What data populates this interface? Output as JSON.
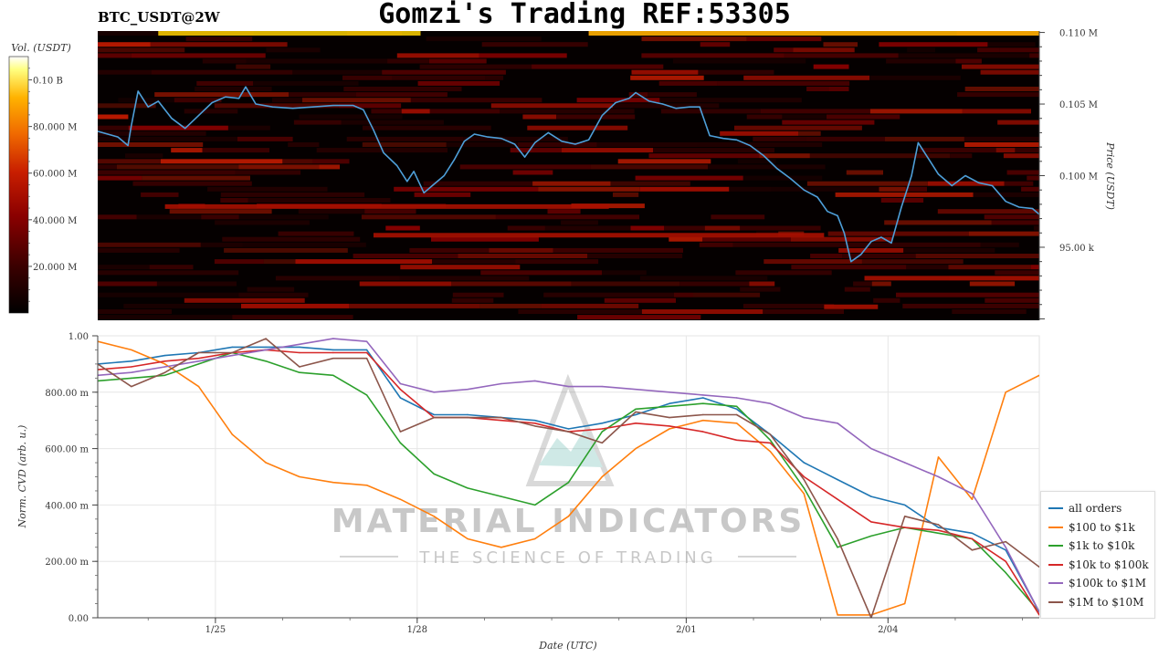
{
  "header": {
    "title": "Gomzi's Trading REF:53305",
    "symbol": "BTC_USDT@2W"
  },
  "colors": {
    "heatmap_bg": "#050000",
    "price_line": "#4e9fd9",
    "colorbar_stops": [
      "#000000",
      "#3a0000",
      "#8b0000",
      "#c81e00",
      "#f06a00",
      "#ffb200",
      "#ffff80",
      "#ffffff"
    ]
  },
  "watermark": {
    "brand": "MATERIAL INDICATORS",
    "tagline": "THE SCIENCE OF TRADING"
  },
  "chart_data": [
    {
      "type": "heatmap",
      "panel": "orderbook",
      "colorbar_label": "Vol. (USDT)",
      "colorbar_ticks": [
        "0.10 B",
        "80.000 M",
        "60.000 M",
        "40.000 M",
        "20.000 M"
      ],
      "colorbar_tick_values": [
        100000000,
        80000000,
        60000000,
        40000000,
        20000000
      ],
      "colorbar_range": [
        0,
        110000000
      ],
      "ylabel": "Price (USDT)",
      "y_ticks": [
        "0.110 M",
        "0.105 M",
        "0.100 M",
        "95.00 k"
      ],
      "y_tick_values": [
        110000,
        105000,
        100000,
        95000
      ],
      "ylim": [
        89900,
        110100
      ],
      "x_range_days": [
        0,
        14
      ],
      "price_series": [
        {
          "x": 0.0,
          "y": 103100
        },
        {
          "x": 0.3,
          "y": 102700
        },
        {
          "x": 0.45,
          "y": 102100
        },
        {
          "x": 0.5,
          "y": 103500
        },
        {
          "x": 0.6,
          "y": 105900
        },
        {
          "x": 0.75,
          "y": 104800
        },
        {
          "x": 0.9,
          "y": 105200
        },
        {
          "x": 1.1,
          "y": 104000
        },
        {
          "x": 1.3,
          "y": 103300
        },
        {
          "x": 1.5,
          "y": 104200
        },
        {
          "x": 1.7,
          "y": 105100
        },
        {
          "x": 1.9,
          "y": 105500
        },
        {
          "x": 2.1,
          "y": 105400
        },
        {
          "x": 2.2,
          "y": 106200
        },
        {
          "x": 2.35,
          "y": 105000
        },
        {
          "x": 2.6,
          "y": 104800
        },
        {
          "x": 2.9,
          "y": 104700
        },
        {
          "x": 3.2,
          "y": 104800
        },
        {
          "x": 3.5,
          "y": 104900
        },
        {
          "x": 3.8,
          "y": 104900
        },
        {
          "x": 3.95,
          "y": 104600
        },
        {
          "x": 4.1,
          "y": 103200
        },
        {
          "x": 4.25,
          "y": 101600
        },
        {
          "x": 4.45,
          "y": 100700
        },
        {
          "x": 4.6,
          "y": 99600
        },
        {
          "x": 4.7,
          "y": 100300
        },
        {
          "x": 4.85,
          "y": 98800
        },
        {
          "x": 5.0,
          "y": 99400
        },
        {
          "x": 5.15,
          "y": 100000
        },
        {
          "x": 5.3,
          "y": 101100
        },
        {
          "x": 5.45,
          "y": 102400
        },
        {
          "x": 5.6,
          "y": 102900
        },
        {
          "x": 5.8,
          "y": 102700
        },
        {
          "x": 6.0,
          "y": 102600
        },
        {
          "x": 6.2,
          "y": 102200
        },
        {
          "x": 6.35,
          "y": 101300
        },
        {
          "x": 6.5,
          "y": 102300
        },
        {
          "x": 6.7,
          "y": 103000
        },
        {
          "x": 6.9,
          "y": 102400
        },
        {
          "x": 7.1,
          "y": 102200
        },
        {
          "x": 7.3,
          "y": 102500
        },
        {
          "x": 7.5,
          "y": 104200
        },
        {
          "x": 7.7,
          "y": 105100
        },
        {
          "x": 7.9,
          "y": 105400
        },
        {
          "x": 8.0,
          "y": 105800
        },
        {
          "x": 8.2,
          "y": 105200
        },
        {
          "x": 8.4,
          "y": 105000
        },
        {
          "x": 8.6,
          "y": 104700
        },
        {
          "x": 8.8,
          "y": 104800
        },
        {
          "x": 8.95,
          "y": 104800
        },
        {
          "x": 9.1,
          "y": 102800
        },
        {
          "x": 9.3,
          "y": 102600
        },
        {
          "x": 9.5,
          "y": 102500
        },
        {
          "x": 9.7,
          "y": 102100
        },
        {
          "x": 9.9,
          "y": 101400
        },
        {
          "x": 10.1,
          "y": 100500
        },
        {
          "x": 10.3,
          "y": 99800
        },
        {
          "x": 10.5,
          "y": 99000
        },
        {
          "x": 10.7,
          "y": 98500
        },
        {
          "x": 10.85,
          "y": 97500
        },
        {
          "x": 11.0,
          "y": 97200
        },
        {
          "x": 11.1,
          "y": 96000
        },
        {
          "x": 11.2,
          "y": 94000
        },
        {
          "x": 11.35,
          "y": 94500
        },
        {
          "x": 11.5,
          "y": 95400
        },
        {
          "x": 11.65,
          "y": 95700
        },
        {
          "x": 11.8,
          "y": 95300
        },
        {
          "x": 11.95,
          "y": 97800
        },
        {
          "x": 12.1,
          "y": 100000
        },
        {
          "x": 12.2,
          "y": 102300
        },
        {
          "x": 12.35,
          "y": 101200
        },
        {
          "x": 12.5,
          "y": 100100
        },
        {
          "x": 12.7,
          "y": 99300
        },
        {
          "x": 12.9,
          "y": 100000
        },
        {
          "x": 13.1,
          "y": 99500
        },
        {
          "x": 13.3,
          "y": 99300
        },
        {
          "x": 13.5,
          "y": 98200
        },
        {
          "x": 13.7,
          "y": 97800
        },
        {
          "x": 13.9,
          "y": 97700
        },
        {
          "x": 14.0,
          "y": 97300
        }
      ]
    },
    {
      "type": "line",
      "panel": "cvd",
      "xlabel": "Date (UTC)",
      "ylabel": "Norm. CVD (arb. u.)",
      "x_ticks": [
        "1/25",
        "1/28",
        "2/01",
        "2/04"
      ],
      "x_tick_values": [
        1.75,
        4.75,
        8.75,
        11.75
      ],
      "x_range_days": [
        0,
        14
      ],
      "y_ticks": [
        "1.00",
        "800.00 m",
        "600.00 m",
        "400.00 m",
        "200.00 m",
        "0.00"
      ],
      "y_tick_values": [
        1.0,
        0.8,
        0.6,
        0.4,
        0.2,
        0.0
      ],
      "ylim": [
        0,
        1
      ],
      "grid": true,
      "legend_position": "right",
      "x": [
        0,
        0.5,
        1,
        1.5,
        2,
        2.5,
        3,
        3.5,
        4,
        4.5,
        5,
        5.5,
        6,
        6.5,
        7,
        7.5,
        8,
        8.5,
        9,
        9.5,
        10,
        10.5,
        11,
        11.5,
        12,
        12.5,
        13,
        13.5,
        14
      ],
      "series": [
        {
          "name": "all orders",
          "color": "#1f77b4",
          "values": [
            0.9,
            0.91,
            0.93,
            0.94,
            0.96,
            0.96,
            0.96,
            0.95,
            0.95,
            0.78,
            0.72,
            0.72,
            0.71,
            0.7,
            0.67,
            0.69,
            0.72,
            0.76,
            0.78,
            0.74,
            0.65,
            0.55,
            0.49,
            0.43,
            0.4,
            0.32,
            0.3,
            0.24,
            0.02
          ]
        },
        {
          "name": "$100 to $1k",
          "color": "#ff7f0e",
          "values": [
            0.98,
            0.95,
            0.9,
            0.82,
            0.65,
            0.55,
            0.5,
            0.48,
            0.47,
            0.42,
            0.36,
            0.28,
            0.25,
            0.28,
            0.36,
            0.5,
            0.6,
            0.67,
            0.7,
            0.69,
            0.59,
            0.44,
            0.01,
            0.01,
            0.05,
            0.57,
            0.42,
            0.8,
            0.86
          ]
        },
        {
          "name": "$1k to $10k",
          "color": "#2ca02c",
          "values": [
            0.84,
            0.85,
            0.86,
            0.9,
            0.94,
            0.91,
            0.87,
            0.86,
            0.79,
            0.62,
            0.51,
            0.46,
            0.43,
            0.4,
            0.48,
            0.66,
            0.74,
            0.75,
            0.76,
            0.75,
            0.63,
            0.46,
            0.25,
            0.29,
            0.32,
            0.3,
            0.28,
            0.16,
            0.02
          ]
        },
        {
          "name": "$10k to $100k",
          "color": "#d62728",
          "values": [
            0.88,
            0.89,
            0.91,
            0.92,
            0.94,
            0.95,
            0.94,
            0.94,
            0.94,
            0.81,
            0.71,
            0.71,
            0.7,
            0.69,
            0.66,
            0.67,
            0.69,
            0.68,
            0.66,
            0.63,
            0.62,
            0.5,
            0.42,
            0.34,
            0.32,
            0.31,
            0.28,
            0.2,
            0.01
          ]
        },
        {
          "name": "$100k to $1M",
          "color": "#9467bd",
          "values": [
            0.86,
            0.87,
            0.89,
            0.91,
            0.93,
            0.95,
            0.97,
            0.99,
            0.98,
            0.83,
            0.8,
            0.81,
            0.83,
            0.84,
            0.82,
            0.82,
            0.81,
            0.8,
            0.79,
            0.78,
            0.76,
            0.71,
            0.69,
            0.6,
            0.55,
            0.5,
            0.44,
            0.25,
            0.02
          ]
        },
        {
          "name": "$1M to $10M",
          "color": "#8c564b",
          "values": [
            0.9,
            0.82,
            0.87,
            0.94,
            0.94,
            0.99,
            0.89,
            0.92,
            0.92,
            0.66,
            0.71,
            0.71,
            0.71,
            0.68,
            0.66,
            0.62,
            0.73,
            0.71,
            0.72,
            0.72,
            0.65,
            0.49,
            0.28,
            0.0,
            0.36,
            0.33,
            0.24,
            0.27,
            0.18
          ]
        }
      ]
    }
  ]
}
